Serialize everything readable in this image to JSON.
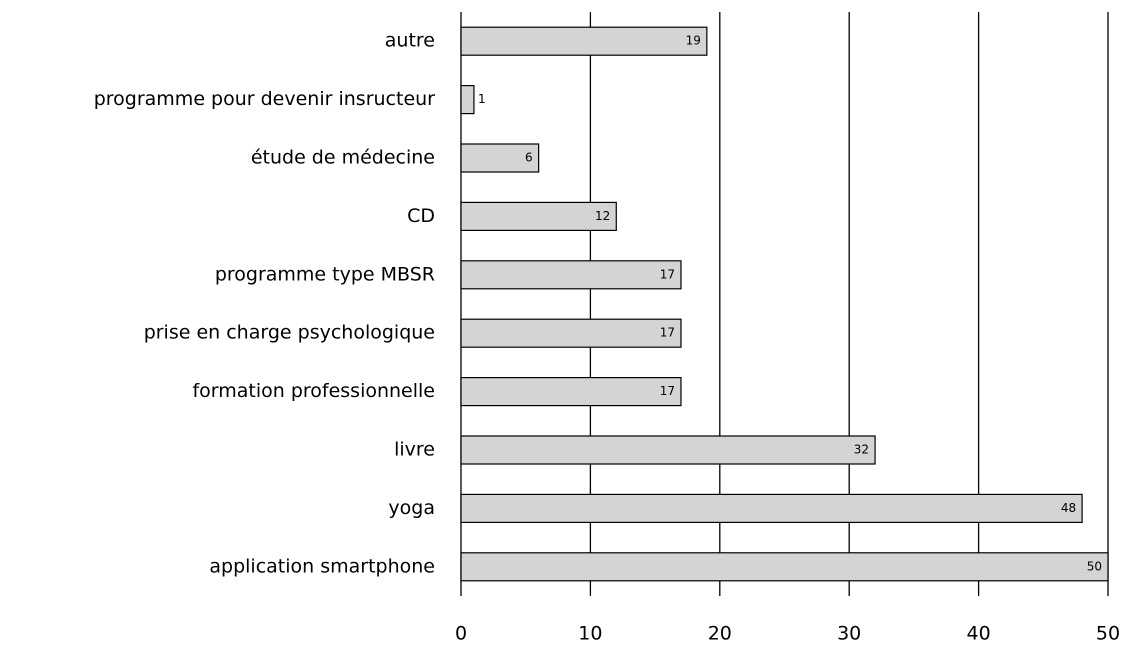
{
  "chart_data": {
    "type": "barh",
    "categories": [
      "autre",
      "programme pour devenir insructeur",
      "étude de médecine",
      "CD",
      "programme type MBSR",
      "prise en charge psychologique",
      "formation professionnelle",
      "livre",
      "yoga",
      "application smartphone"
    ],
    "values": [
      19,
      1,
      6,
      12,
      17,
      17,
      17,
      32,
      48,
      50
    ],
    "color": "#d4d4d4",
    "xlim": [
      0,
      50
    ],
    "xticks": [
      0,
      10,
      20,
      30,
      40,
      50
    ],
    "grid": true
  }
}
